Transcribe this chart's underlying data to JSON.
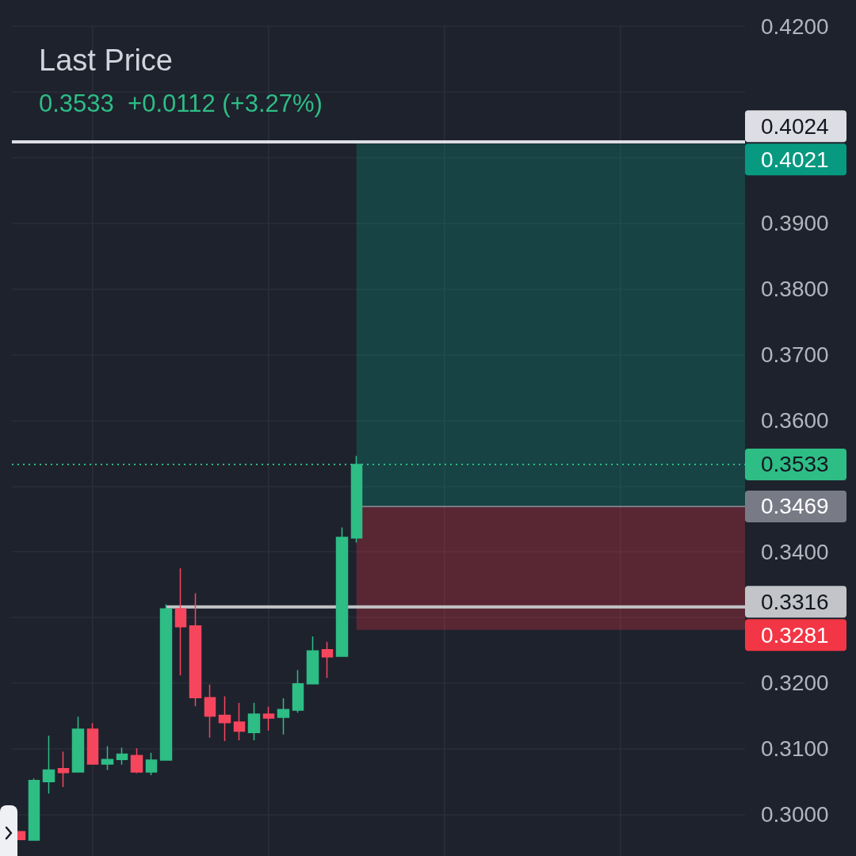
{
  "chart_data": {
    "type": "candlestick",
    "title": "Last Price",
    "subtitle": "0.3533  +0.0112 (+3.27%)",
    "categories": [
      null,
      null,
      null,
      null,
      null,
      null,
      null,
      null,
      null,
      null,
      null,
      null,
      null,
      null,
      null,
      null,
      null,
      null,
      null,
      null,
      null,
      null,
      null,
      null,
      null,
      null,
      null,
      null,
      null,
      null,
      null,
      null,
      null,
      null,
      null,
      null,
      null,
      null,
      null,
      null,
      null,
      null,
      null,
      null,
      null,
      null,
      null,
      null,
      null,
      null
    ],
    "ohlc": [
      [
        0.2974,
        0.2974,
        0.2961,
        0.2962
      ],
      [
        0.2961,
        0.3055,
        0.2961,
        0.3052
      ],
      [
        0.305,
        0.312,
        0.3032,
        0.3068
      ],
      [
        0.307,
        0.3096,
        0.3042,
        0.3064
      ],
      [
        0.3065,
        0.3149,
        0.3065,
        0.313
      ],
      [
        0.313,
        0.3139,
        0.3076,
        0.3077
      ],
      [
        0.3077,
        0.3104,
        0.3068,
        0.3084
      ],
      [
        0.3084,
        0.3102,
        0.3076,
        0.3092
      ],
      [
        0.309,
        0.3101,
        0.3063,
        0.3065
      ],
      [
        0.3065,
        0.3094,
        0.306,
        0.3083
      ],
      [
        0.3083,
        0.332,
        0.3083,
        0.3313
      ],
      [
        0.3313,
        0.3375,
        0.3212,
        0.3286
      ],
      [
        0.3287,
        0.3337,
        0.3165,
        0.3178
      ],
      [
        0.3178,
        0.3198,
        0.3117,
        0.315
      ],
      [
        0.3151,
        0.318,
        0.3112,
        0.314
      ],
      [
        0.3141,
        0.317,
        0.3113,
        0.3127
      ],
      [
        0.3125,
        0.317,
        0.3113,
        0.3153
      ],
      [
        0.3153,
        0.3164,
        0.3128,
        0.3147
      ],
      [
        0.3148,
        0.3177,
        0.3122,
        0.316
      ],
      [
        0.3159,
        0.322,
        0.3155,
        0.3199
      ],
      [
        0.3199,
        0.3271,
        0.3199,
        0.3249
      ],
      [
        0.3251,
        0.3263,
        0.3208,
        0.324
      ],
      [
        0.3241,
        0.3437,
        0.3241,
        0.3422
      ],
      [
        0.3421,
        0.3546,
        0.3414,
        0.3533
      ],
      null,
      null,
      null,
      null,
      null,
      null,
      null,
      null,
      null,
      null,
      null,
      null,
      null,
      null,
      null,
      null,
      null,
      null,
      null,
      null,
      null,
      null,
      null,
      null,
      null,
      null
    ],
    "colors": [
      "#f6465d",
      "#2ebd85",
      "#2ebd85",
      "#f6465d",
      "#2ebd85",
      "#f6465d",
      "#2ebd85",
      "#2ebd85",
      "#f6465d",
      "#2ebd85",
      "#2ebd85",
      "#f6465d",
      "#f6465d",
      "#f6465d",
      "#f6465d",
      "#f6465d",
      "#2ebd85",
      "#f6465d",
      "#2ebd85",
      "#2ebd85",
      "#2ebd85",
      "#f6465d",
      "#2ebd85",
      "#2ebd85",
      null,
      null,
      null,
      null,
      null,
      null,
      null,
      null,
      null,
      null,
      null,
      null,
      null,
      null,
      null,
      null,
      null,
      null,
      null,
      null,
      null,
      null,
      null,
      null,
      null,
      null
    ],
    "ylim": [
      0.2937,
      0.42
    ],
    "yticks": [
      {
        "value": 0.3,
        "label": "0.3000"
      },
      {
        "value": 0.31,
        "label": "0.3100"
      },
      {
        "value": 0.32,
        "label": "0.3200"
      },
      {
        "value": 0.33,
        "label": null
      },
      {
        "value": 0.34,
        "label": "0.3400"
      },
      {
        "value": 0.35,
        "label": null
      },
      {
        "value": 0.36,
        "label": "0.3600"
      },
      {
        "value": 0.37,
        "label": "0.3700"
      },
      {
        "value": 0.38,
        "label": "0.3800"
      },
      {
        "value": 0.39,
        "label": "0.3900"
      },
      {
        "value": 0.4,
        "label": null
      },
      {
        "value": 0.41,
        "label": null
      },
      {
        "value": 0.42,
        "label": "0.4200"
      }
    ],
    "grid": true,
    "tick_labels": "y",
    "ref_lines": [
      {
        "axis": "y",
        "value": 0.4024,
        "label": "0.4024",
        "color": "#dcdee3"
      },
      {
        "axis": "y",
        "value": 0.3533,
        "label": "0.3533",
        "color": "#2ebd85",
        "line_style": "dotted"
      },
      {
        "axis": "y",
        "value": 0.3469,
        "label": "0.3469",
        "color": "#787b86"
      },
      {
        "axis": "y",
        "value": 0.3316,
        "label": "0.3316",
        "color": "#c3c4c7"
      }
    ],
    "bands": [
      {
        "axis": "y",
        "from": 0.3469,
        "to": 0.4021,
        "label": "0.4021",
        "color": "#089981"
      },
      {
        "axis": "y",
        "from": 0.3281,
        "to": 0.3469,
        "label": "0.3281",
        "color": "#f23645"
      }
    ]
  }
}
